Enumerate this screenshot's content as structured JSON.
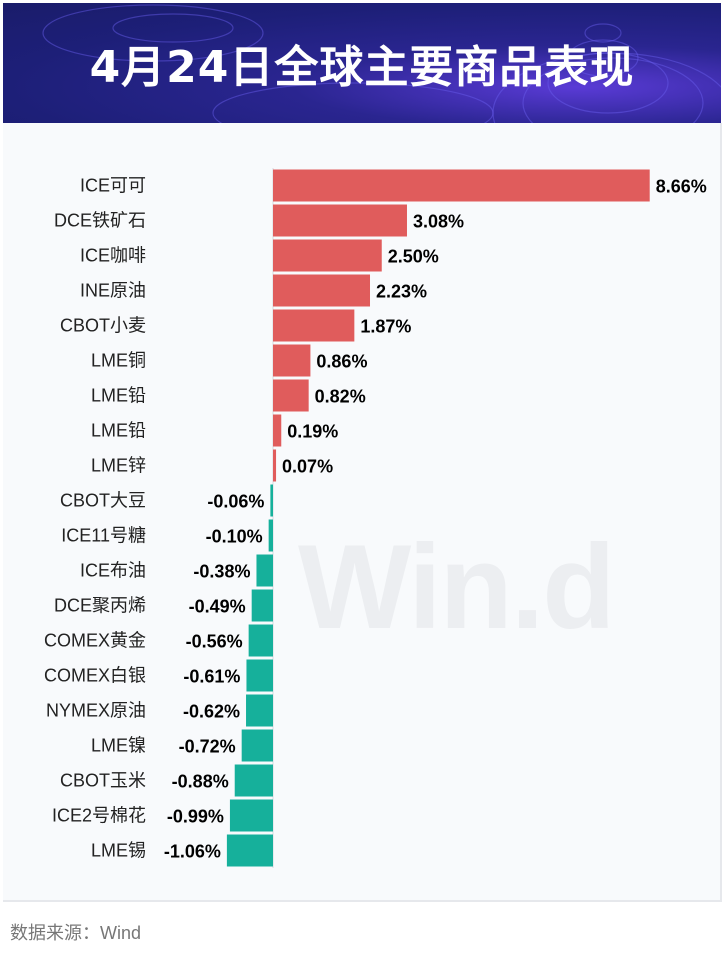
{
  "header": {
    "title": "4月24日全球主要商品表现"
  },
  "watermark": "Win.d",
  "footer": {
    "source": "数据来源：Wind"
  },
  "colors": {
    "positive": "#e05c5c",
    "negative": "#16b09b"
  },
  "chart_data": {
    "type": "bar",
    "orientation": "horizontal",
    "title": "4月24日全球主要商品表现",
    "unit": "%",
    "categories": [
      "ICE可可",
      "DCE铁矿石",
      "ICE咖啡",
      "INE原油",
      "CBOT小麦",
      "LME铜",
      "LME铅",
      "LME铅",
      "LME锌",
      "CBOT大豆",
      "ICE11号糖",
      "ICE布油",
      "DCE聚丙烯",
      "COMEX黄金",
      "COMEX白银",
      "NYMEX原油",
      "LME镍",
      "CBOT玉米",
      "ICE2号棉花",
      "LME锡"
    ],
    "values": [
      8.66,
      3.08,
      2.5,
      2.23,
      1.87,
      0.86,
      0.82,
      0.19,
      0.07,
      -0.06,
      -0.1,
      -0.38,
      -0.49,
      -0.56,
      -0.61,
      -0.62,
      -0.72,
      -0.88,
      -0.99,
      -1.06
    ],
    "labels": [
      "8.66%",
      "3.08%",
      "2.50%",
      "2.23%",
      "1.87%",
      "0.86%",
      "0.82%",
      "0.19%",
      "0.07%",
      "-0.06%",
      "-0.10%",
      "-0.38%",
      "-0.49%",
      "-0.56%",
      "-0.61%",
      "-0.62%",
      "-0.72%",
      "-0.88%",
      "-0.99%",
      "-1.06%"
    ]
  }
}
